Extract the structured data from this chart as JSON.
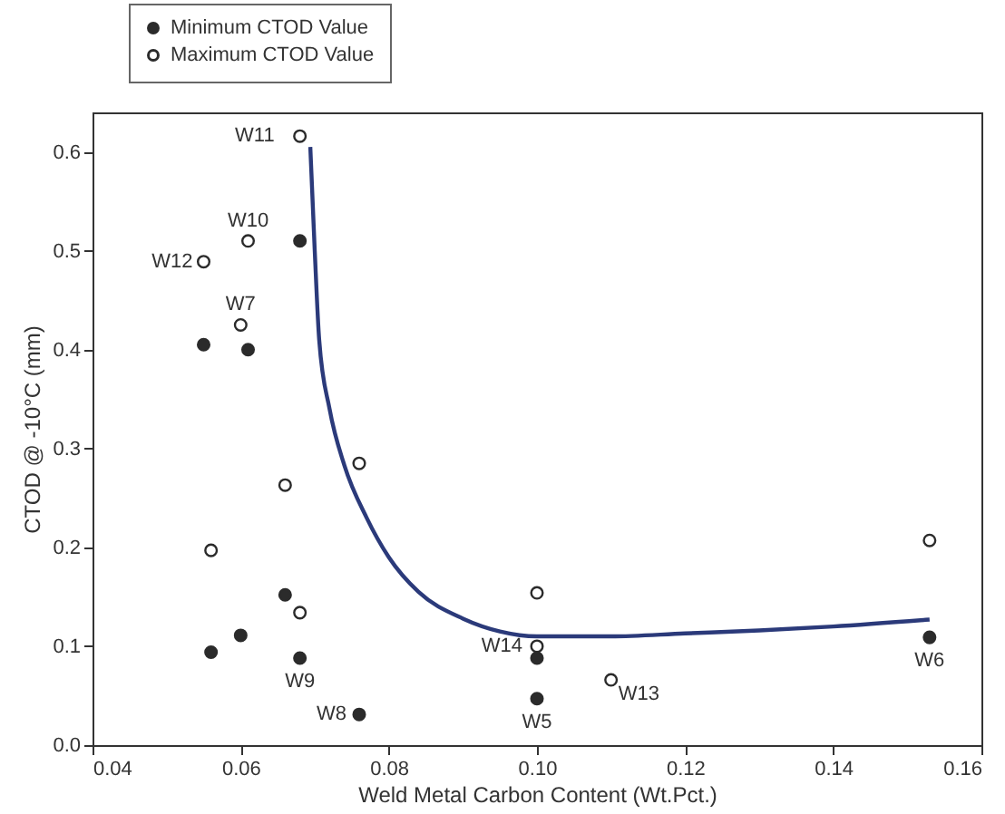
{
  "chart_data": {
    "type": "scatter",
    "xlabel": "Weld Metal Carbon Content (Wt.Pct.)",
    "ylabel": "CTOD @ -10°C (mm)",
    "xlim": [
      0.04,
      0.16
    ],
    "xticks": [
      0.04,
      0.06,
      0.08,
      {
        "value": 0.1,
        "label": "0.10"
      },
      0.12,
      0.14,
      0.16
    ],
    "ylim": [
      0,
      0.64
    ],
    "yticks": [
      {
        "value": 0,
        "label": "0.0"
      },
      0.1,
      0.2,
      0.3,
      0.4,
      0.5,
      0.6
    ],
    "grid": false,
    "legend": "top left",
    "series": [
      {
        "name": "Minimum CTOD Value",
        "color": "#2b2b2b",
        "marker": "circle",
        "x": [
          0.055,
          0.061,
          0.068,
          0.056,
          0.06,
          0.066,
          0.068,
          0.076,
          0.1,
          0.1,
          0.153
        ],
        "values": [
          0.405,
          0.4,
          0.51,
          0.094,
          0.111,
          0.152,
          0.088,
          0.031,
          0.088,
          0.047,
          0.109
        ]
      },
      {
        "name": "Maximum CTOD Value",
        "color": "#ffffff",
        "marker": "circle",
        "x": [
          0.068,
          0.061,
          0.055,
          0.06,
          0.056,
          0.066,
          0.068,
          0.076,
          0.1,
          0.11,
          0.153,
          0.1
        ],
        "values": [
          0.616,
          0.51,
          0.489,
          0.425,
          0.197,
          0.263,
          0.134,
          0.285,
          0.1,
          0.066,
          0.207,
          0.154
        ]
      },
      {
        "type": "line",
        "color": "#2b3a7a",
        "x": [
          0.0694,
          0.07,
          0.0706,
          0.072,
          0.074,
          0.077,
          0.08,
          0.084,
          0.09,
          0.095,
          0.1,
          0.11,
          0.12,
          0.13,
          0.14,
          0.153
        ],
        "values": [
          0.605,
          0.5,
          0.41,
          0.34,
          0.283,
          0.23,
          0.19,
          0.155,
          0.128,
          0.115,
          0.11,
          0.11,
          0.113,
          0.116,
          0.12,
          0.127
        ]
      }
    ],
    "annotations": [
      {
        "text": "W11",
        "x": 0.068,
        "y": 0.616
      },
      {
        "text": "W10",
        "x": 0.061,
        "y": 0.51
      },
      {
        "text": "W12",
        "x": 0.055,
        "y": 0.489
      },
      {
        "text": "W7",
        "x": 0.06,
        "y": 0.425
      },
      {
        "text": "W9",
        "x": 0.068,
        "y": 0.088
      },
      {
        "text": "W8",
        "x": 0.076,
        "y": 0.031
      },
      {
        "text": "W14",
        "x": 0.1,
        "y": 0.1
      },
      {
        "text": "W5",
        "x": 0.1,
        "y": 0.047
      },
      {
        "text": "W13",
        "x": 0.11,
        "y": 0.066
      },
      {
        "text": "W6",
        "x": 0.153,
        "y": 0.109
      }
    ]
  }
}
